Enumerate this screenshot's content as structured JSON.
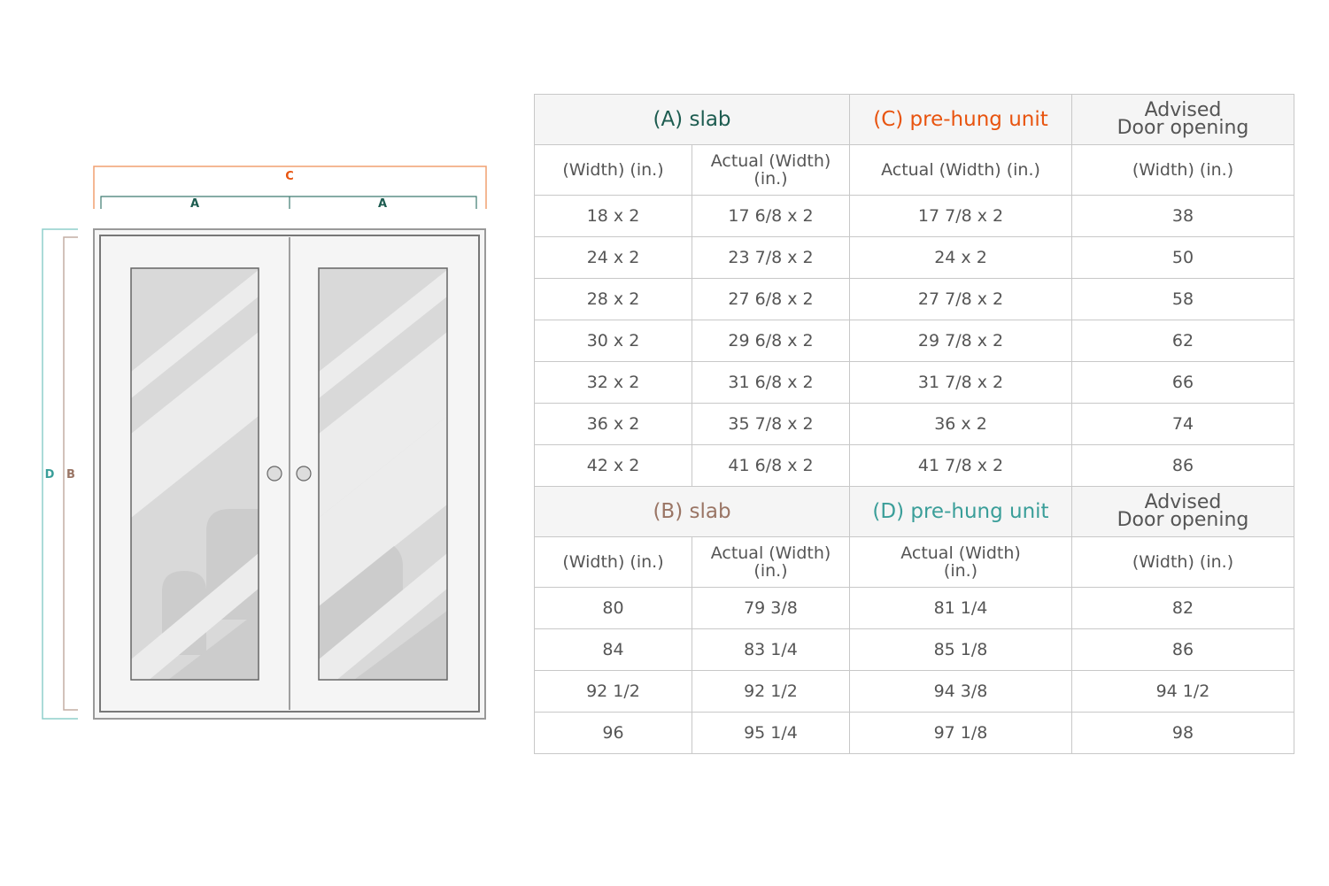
{
  "diagram": {
    "labels": {
      "c": "C",
      "a_left": "A",
      "a_right": "A",
      "d": "D",
      "b": "B"
    },
    "colors": {
      "A": "#1d5c50",
      "B": "#9a7565",
      "C": "#e8540f",
      "D": "#3a9e99"
    }
  },
  "table1": {
    "group_headers": {
      "slab": "(A) slab",
      "prehung": "(C) pre-hung unit",
      "advised": [
        "Advised",
        "Door opening"
      ]
    },
    "sub_headers": [
      "(Width) (in.)",
      "Actual (Width) (in.)",
      "Actual (Width) (in.)",
      "(Width) (in.)"
    ],
    "rows": [
      [
        "18 x 2",
        "17 6/8 x 2",
        "17 7/8 x 2",
        "38"
      ],
      [
        "24 x 2",
        "23 7/8 x 2",
        "24 x 2",
        "50"
      ],
      [
        "28 x 2",
        "27 6/8 x 2",
        "27 7/8 x 2",
        "58"
      ],
      [
        "30 x 2",
        "29 6/8 x 2",
        "29 7/8 x 2",
        "62"
      ],
      [
        "32 x 2",
        "31 6/8 x 2",
        "31 7/8 x 2",
        "66"
      ],
      [
        "36 x 2",
        "35 7/8 x 2",
        "36 x 2",
        "74"
      ],
      [
        "42 x 2",
        "41 6/8 x 2",
        "41 7/8 x 2",
        "86"
      ]
    ]
  },
  "table2": {
    "group_headers": {
      "slab": "(B) slab",
      "prehung": "(D) pre-hung unit",
      "advised": [
        "Advised",
        "Door opening"
      ]
    },
    "sub_headers": [
      "(Width) (in.)",
      "Actual (Width) (in.)",
      "Actual (Width) (in.)",
      "(Width) (in.)"
    ],
    "rows": [
      [
        "80",
        "79 3/8",
        "81 1/4",
        "82"
      ],
      [
        "84",
        "83 1/4",
        "85 1/8",
        "86"
      ],
      [
        "92 1/2",
        "92 1/2",
        "94 3/8",
        "94 1/2"
      ],
      [
        "96",
        "95 1/4",
        "97 1/8",
        "98"
      ]
    ]
  }
}
